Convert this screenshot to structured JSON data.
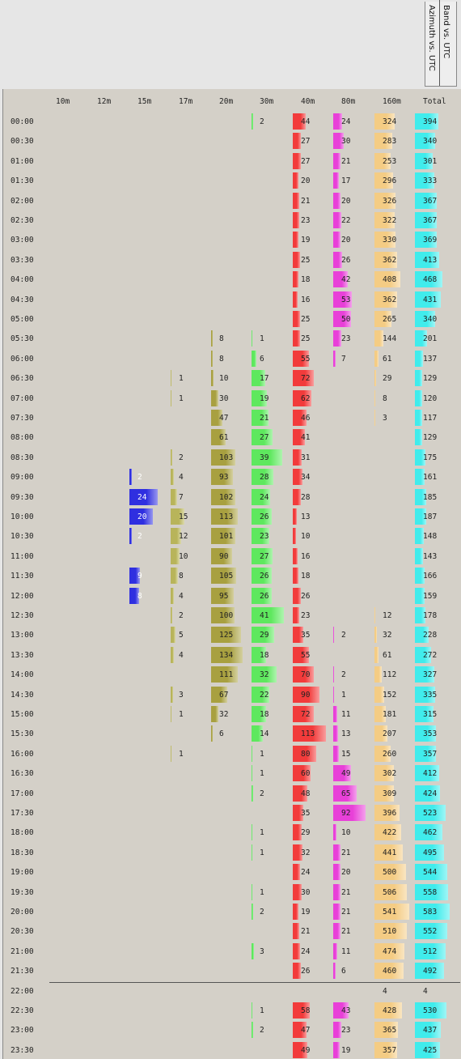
{
  "tabs": [
    {
      "label": "Azimuth vs. UTC"
    },
    {
      "label": "Band vs. UTC"
    }
  ],
  "columns": [
    "10m",
    "12m",
    "15m",
    "17m",
    "20m",
    "30m",
    "40m",
    "80m",
    "160m",
    "Total"
  ],
  "colors": {
    "15m": "#2f2fe0",
    "17m": "#b8b45a",
    "20m": "#a8a040",
    "30m": "#5ee85e",
    "40m": "#f23b3b",
    "80m": "#e840d8",
    "160m": "#f4cc84",
    "Total": "#40ecec",
    "background": "#d4d0c8",
    "topbar": "#e6e6e6"
  },
  "bar_max": 120,
  "rows": [
    {
      "time": "00:00",
      "v": {
        "30m": 2,
        "40m": 44,
        "80m": 24,
        "160m": 324,
        "Total": 394
      }
    },
    {
      "time": "00:30",
      "v": {
        "40m": 27,
        "80m": 30,
        "160m": 283,
        "Total": 340
      }
    },
    {
      "time": "01:00",
      "v": {
        "40m": 27,
        "80m": 21,
        "160m": 253,
        "Total": 301
      }
    },
    {
      "time": "01:30",
      "v": {
        "40m": 20,
        "80m": 17,
        "160m": 296,
        "Total": 333
      }
    },
    {
      "time": "02:00",
      "v": {
        "40m": 21,
        "80m": 20,
        "160m": 326,
        "Total": 367
      }
    },
    {
      "time": "02:30",
      "v": {
        "40m": 23,
        "80m": 22,
        "160m": 322,
        "Total": 367
      }
    },
    {
      "time": "03:00",
      "v": {
        "40m": 19,
        "80m": 20,
        "160m": 330,
        "Total": 369
      }
    },
    {
      "time": "03:30",
      "v": {
        "40m": 25,
        "80m": 26,
        "160m": 362,
        "Total": 413
      }
    },
    {
      "time": "04:00",
      "v": {
        "40m": 18,
        "80m": 42,
        "160m": 408,
        "Total": 468
      }
    },
    {
      "time": "04:30",
      "v": {
        "40m": 16,
        "80m": 53,
        "160m": 362,
        "Total": 431
      }
    },
    {
      "time": "05:00",
      "v": {
        "40m": 25,
        "80m": 50,
        "160m": 265,
        "Total": 340
      }
    },
    {
      "time": "05:30",
      "v": {
        "20m": 8,
        "30m": 1,
        "40m": 25,
        "80m": 23,
        "160m": 144,
        "Total": 201
      }
    },
    {
      "time": "06:00",
      "v": {
        "20m": 8,
        "30m": 6,
        "40m": 55,
        "80m": 7,
        "160m": 61,
        "Total": 137
      }
    },
    {
      "time": "06:30",
      "v": {
        "17m": 1,
        "20m": 10,
        "30m": 17,
        "40m": 72,
        "160m": 29,
        "Total": 129
      }
    },
    {
      "time": "07:00",
      "v": {
        "17m": 1,
        "20m": 30,
        "30m": 19,
        "40m": 62,
        "160m": 8,
        "Total": 120
      }
    },
    {
      "time": "07:30",
      "v": {
        "20m": 47,
        "30m": 21,
        "40m": 46,
        "160m": 3,
        "Total": 117
      }
    },
    {
      "time": "08:00",
      "v": {
        "20m": 61,
        "30m": 27,
        "40m": 41,
        "Total": 129
      }
    },
    {
      "time": "08:30",
      "v": {
        "17m": 2,
        "20m": 103,
        "30m": 39,
        "40m": 31,
        "Total": 175
      }
    },
    {
      "time": "09:00",
      "v": {
        "15m": 2,
        "17m": 4,
        "20m": 93,
        "30m": 28,
        "40m": 34,
        "Total": 161
      }
    },
    {
      "time": "09:30",
      "v": {
        "15m": 24,
        "17m": 7,
        "20m": 102,
        "30m": 24,
        "40m": 28,
        "Total": 185
      }
    },
    {
      "time": "10:00",
      "v": {
        "15m": 20,
        "17m": 15,
        "20m": 113,
        "30m": 26,
        "40m": 13,
        "Total": 187
      }
    },
    {
      "time": "10:30",
      "v": {
        "15m": 2,
        "17m": 12,
        "20m": 101,
        "30m": 23,
        "40m": 10,
        "Total": 148
      }
    },
    {
      "time": "11:00",
      "v": {
        "17m": 10,
        "20m": 90,
        "30m": 27,
        "40m": 16,
        "Total": 143
      }
    },
    {
      "time": "11:30",
      "v": {
        "15m": 9,
        "17m": 8,
        "20m": 105,
        "30m": 26,
        "40m": 18,
        "Total": 166
      }
    },
    {
      "time": "12:00",
      "v": {
        "15m": 8,
        "17m": 4,
        "20m": 95,
        "30m": 26,
        "40m": 26,
        "Total": 159
      }
    },
    {
      "time": "12:30",
      "v": {
        "17m": 2,
        "20m": 100,
        "30m": 41,
        "40m": 23,
        "160m": 12,
        "Total": 178
      }
    },
    {
      "time": "13:00",
      "v": {
        "17m": 5,
        "20m": 125,
        "30m": 29,
        "40m": 35,
        "80m": 2,
        "160m": 32,
        "Total": 228
      }
    },
    {
      "time": "13:30",
      "v": {
        "17m": 4,
        "20m": 134,
        "30m": 18,
        "40m": 55,
        "160m": 61,
        "Total": 272
      }
    },
    {
      "time": "14:00",
      "v": {
        "20m": 111,
        "30m": 32,
        "40m": 70,
        "80m": 2,
        "160m": 112,
        "Total": 327
      }
    },
    {
      "time": "14:30",
      "v": {
        "17m": 3,
        "20m": 67,
        "30m": 22,
        "40m": 90,
        "80m": 1,
        "160m": 152,
        "Total": 335
      }
    },
    {
      "time": "15:00",
      "v": {
        "17m": 1,
        "20m": 32,
        "30m": 18,
        "40m": 72,
        "80m": 11,
        "160m": 181,
        "Total": 315
      }
    },
    {
      "time": "15:30",
      "v": {
        "20m": 6,
        "30m": 14,
        "40m": 113,
        "80m": 13,
        "160m": 207,
        "Total": 353
      }
    },
    {
      "time": "16:00",
      "v": {
        "17m": 1,
        "30m": 1,
        "40m": 80,
        "80m": 15,
        "160m": 260,
        "Total": 357
      }
    },
    {
      "time": "16:30",
      "v": {
        "30m": 1,
        "40m": 60,
        "80m": 49,
        "160m": 302,
        "Total": 412
      }
    },
    {
      "time": "17:00",
      "v": {
        "30m": 2,
        "40m": 48,
        "80m": 65,
        "160m": 309,
        "Total": 424
      }
    },
    {
      "time": "17:30",
      "v": {
        "40m": 35,
        "80m": 92,
        "160m": 396,
        "Total": 523
      }
    },
    {
      "time": "18:00",
      "v": {
        "30m": 1,
        "40m": 29,
        "80m": 10,
        "160m": 422,
        "Total": 462
      }
    },
    {
      "time": "18:30",
      "v": {
        "30m": 1,
        "40m": 32,
        "80m": 21,
        "160m": 441,
        "Total": 495
      }
    },
    {
      "time": "19:00",
      "v": {
        "40m": 24,
        "80m": 20,
        "160m": 500,
        "Total": 544
      }
    },
    {
      "time": "19:30",
      "v": {
        "30m": 1,
        "40m": 30,
        "80m": 21,
        "160m": 506,
        "Total": 558
      }
    },
    {
      "time": "20:00",
      "v": {
        "30m": 2,
        "40m": 19,
        "80m": 21,
        "160m": 541,
        "Total": 583
      }
    },
    {
      "time": "20:30",
      "v": {
        "40m": 21,
        "80m": 21,
        "160m": 510,
        "Total": 552
      }
    },
    {
      "time": "21:00",
      "v": {
        "30m": 3,
        "40m": 24,
        "80m": 11,
        "160m": 474,
        "Total": 512
      }
    },
    {
      "time": "21:30",
      "v": {
        "40m": 26,
        "80m": 6,
        "160m": 460,
        "Total": 492
      }
    },
    {
      "time": "22:00",
      "v": {
        "160m": 4,
        "Total": 4
      },
      "nobars": true
    },
    {
      "time": "22:30",
      "v": {
        "30m": 1,
        "40m": 58,
        "80m": 43,
        "160m": 428,
        "Total": 530
      }
    },
    {
      "time": "23:00",
      "v": {
        "30m": 2,
        "40m": 47,
        "80m": 23,
        "160m": 365,
        "Total": 437
      }
    },
    {
      "time": "23:30",
      "v": {
        "40m": 49,
        "80m": 19,
        "160m": 357,
        "Total": 425
      }
    }
  ]
}
